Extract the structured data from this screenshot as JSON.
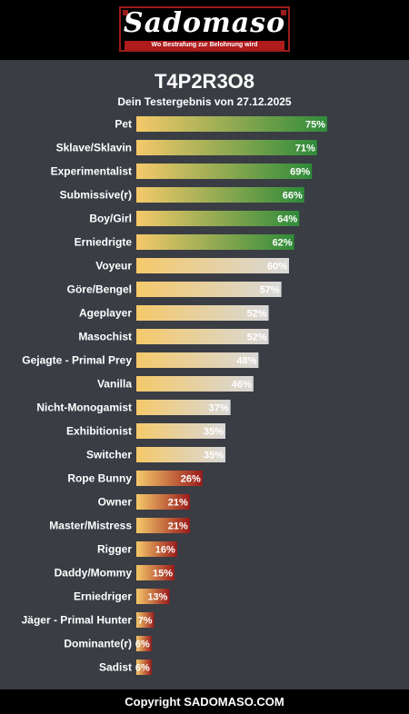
{
  "header": {
    "logo_text": "Sadomaso",
    "logo_tagline": "Wo Bestrafung zur Belohnung wird"
  },
  "page": {
    "title": "T4P2R3O8",
    "subtitle": "Dein Testergebnis von 27.12.2025"
  },
  "footer": {
    "copyright": "Copyright SADOMASO.COM"
  },
  "colors": {
    "background": "#3a3d44",
    "bar_start": "#f5c96a",
    "green_end": "#2e8b3a",
    "grey_end": "#d8d8d8",
    "red_end": "#9b1b1b"
  },
  "chart_data": {
    "type": "bar",
    "orientation": "horizontal",
    "value_unit": "%",
    "xlim": [
      0,
      100
    ],
    "grid": false,
    "categories": [
      "Pet",
      "Sklave/Sklavin",
      "Experimentalist",
      "Submissive(r)",
      "Boy/Girl",
      "Erniedrigte",
      "Voyeur",
      "Göre/Bengel",
      "Ageplayer",
      "Masochist",
      "Gejagte - Primal Prey",
      "Vanilla",
      "Nicht-Monogamist",
      "Exhibitionist",
      "Switcher",
      "Rope Bunny",
      "Owner",
      "Master/Mistress",
      "Rigger",
      "Daddy/Mommy",
      "Erniedriger",
      "Jäger - Primal Hunter",
      "Dominante(r)",
      "Sadist"
    ],
    "values": [
      75,
      71,
      69,
      66,
      64,
      62,
      60,
      57,
      52,
      52,
      48,
      46,
      37,
      35,
      35,
      26,
      21,
      21,
      16,
      15,
      13,
      7,
      6,
      6
    ],
    "value_labels": [
      "75%",
      "71%",
      "69%",
      "66%",
      "64%",
      "62%",
      "60%",
      "57%",
      "52%",
      "52%",
      "48%",
      "46%",
      "37%",
      "35%",
      "35%",
      "26%",
      "21%",
      "21%",
      "16%",
      "15%",
      "13%",
      "7%",
      "6%",
      "6%"
    ]
  }
}
